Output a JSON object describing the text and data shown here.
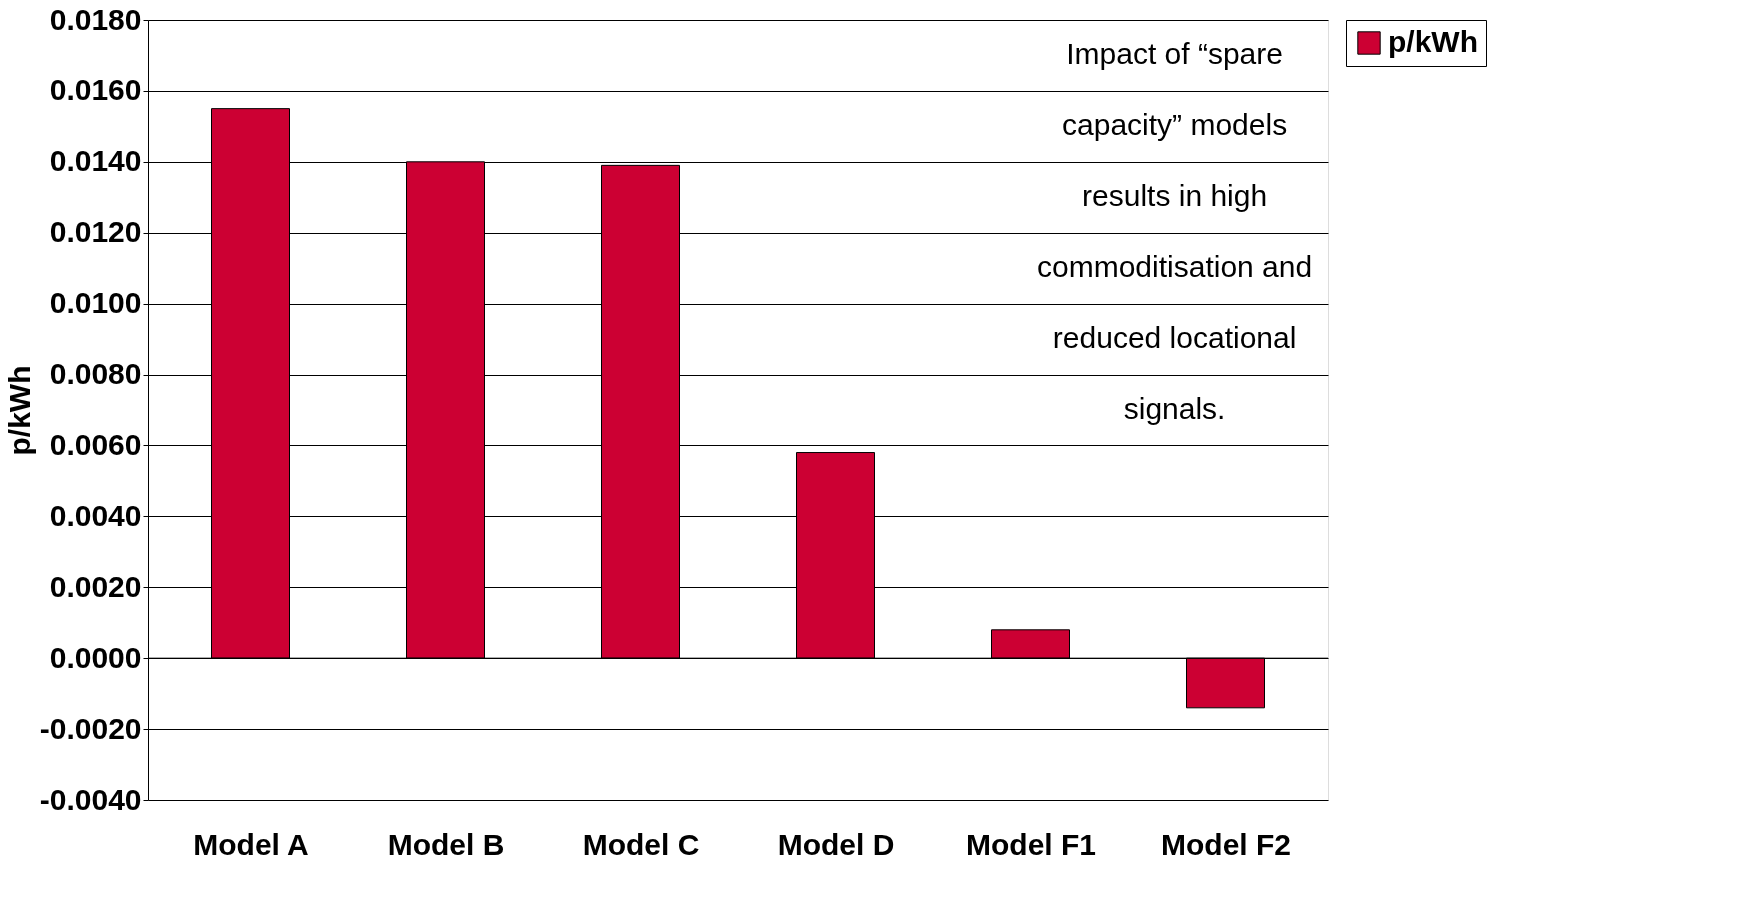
{
  "chart_data": {
    "type": "bar",
    "ylabel": "p/kWh",
    "categories": [
      "Model A",
      "Model B",
      "Model C",
      "Model D",
      "Model F1",
      "Model F2"
    ],
    "series": [
      {
        "name": "p/kWh",
        "color": "#cc0033",
        "values": [
          0.0155,
          0.014,
          0.0139,
          0.0058,
          0.0008,
          -0.0014
        ]
      }
    ],
    "ylim": [
      -0.004,
      0.018
    ],
    "yticks": [
      {
        "value": -0.004,
        "label": "-0.0040"
      },
      {
        "value": -0.002,
        "label": "-0.0020"
      },
      {
        "value": 0,
        "label": "0.0000"
      },
      {
        "value": 0.002,
        "label": "0.0020"
      },
      {
        "value": 0.004,
        "label": "0.0040"
      },
      {
        "value": 0.006,
        "label": "0.0060"
      },
      {
        "value": 0.008,
        "label": "0.0080"
      },
      {
        "value": 0.01,
        "label": "0.0100"
      },
      {
        "value": 0.012,
        "label": "0.0120"
      },
      {
        "value": 0.014,
        "label": "0.0140"
      },
      {
        "value": 0.016,
        "label": "0.0160"
      },
      {
        "value": 0.018,
        "label": "0.0180"
      }
    ],
    "grid": "y",
    "legend": "right",
    "annotations": [
      "Impact of “spare capacity” models results in high commoditisation and reduced locational signals."
    ]
  }
}
